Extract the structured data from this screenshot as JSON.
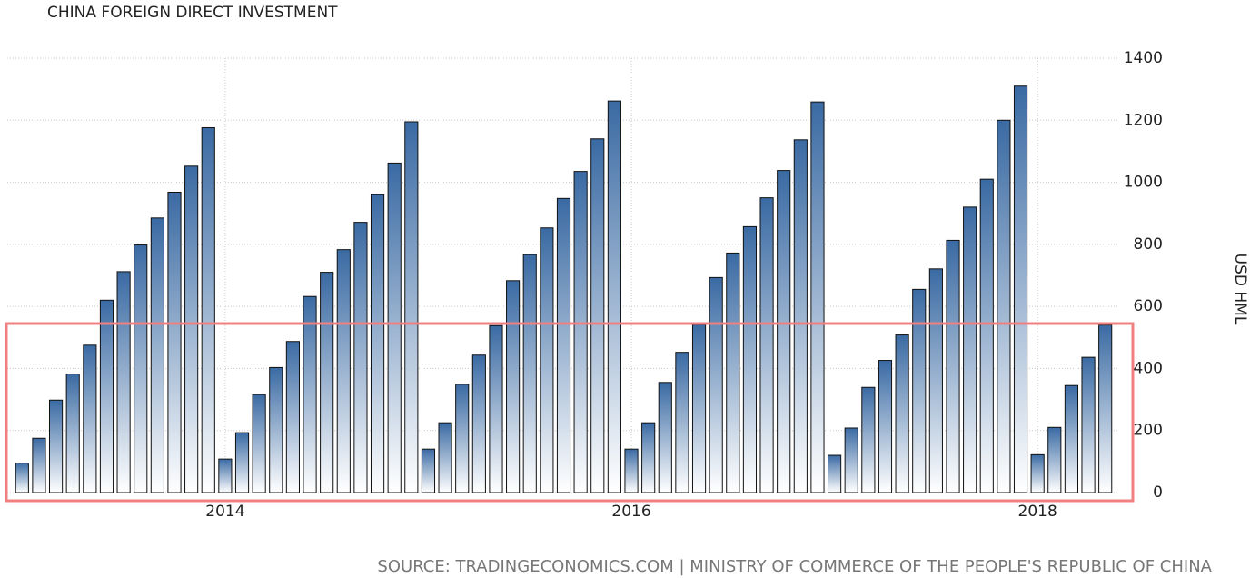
{
  "chart_data": {
    "type": "bar",
    "title": "CHINA FOREIGN DIRECT INVESTMENT",
    "y_axis_label": "USD HML",
    "source": "SOURCE: TRADINGECONOMICS.COM | MINISTRY OF COMMERCE OF THE PEOPLE'S REPUBLIC OF CHINA",
    "categories": [
      null,
      null,
      null,
      null,
      null,
      null,
      null,
      null,
      null,
      null,
      null,
      null,
      "2014",
      null,
      null,
      null,
      null,
      null,
      null,
      null,
      null,
      null,
      null,
      null,
      null,
      null,
      null,
      null,
      null,
      null,
      null,
      null,
      null,
      null,
      null,
      null,
      "2016",
      null,
      null,
      null,
      null,
      null,
      null,
      null,
      null,
      null,
      null,
      null,
      null,
      null,
      null,
      null,
      null,
      null,
      null,
      null,
      null,
      null,
      null,
      null,
      "2018",
      null,
      null,
      null,
      null
    ],
    "values": [
      95,
      175,
      298,
      382,
      475,
      620,
      712,
      798,
      885,
      968,
      1052,
      1176,
      108,
      193,
      316,
      403,
      487,
      632,
      710,
      783,
      871,
      960,
      1062,
      1195,
      140,
      225,
      349,
      443,
      538,
      683,
      767,
      853,
      948,
      1035,
      1140,
      1262,
      140,
      225,
      355,
      452,
      541,
      693,
      772,
      857,
      950,
      1038,
      1137,
      1259,
      120,
      208,
      339,
      426,
      508,
      655,
      721,
      813,
      920,
      1010,
      1200,
      1310,
      122,
      210,
      345,
      436,
      540
    ],
    "color": "#3a6aa3",
    "ylim": [
      0,
      1400
    ],
    "yticks": [
      0,
      200,
      400,
      600,
      800,
      1000,
      1200,
      1400
    ],
    "grid": true
  }
}
